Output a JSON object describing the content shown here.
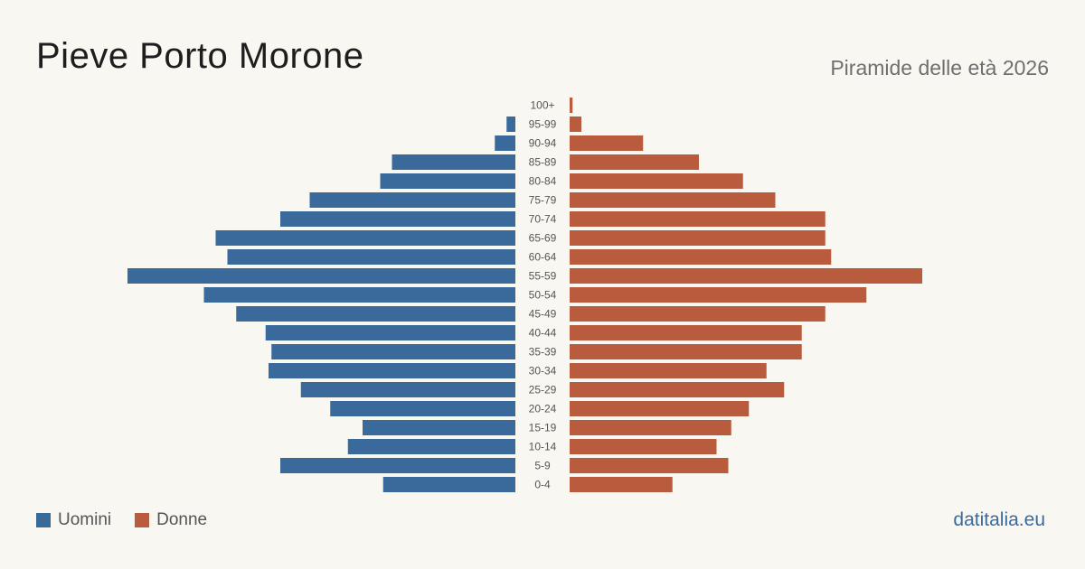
{
  "header": {
    "title": "Pieve Porto Morone",
    "subtitle": "Piramide delle età 2026"
  },
  "legend": {
    "men_label": "Uomini",
    "women_label": "Donne"
  },
  "footer": {
    "source": "datitalia.eu"
  },
  "colors": {
    "men": "#3a6a9c",
    "women": "#b95c3e",
    "background": "#f9f7f2"
  },
  "chart_data": {
    "type": "bar",
    "orientation": "horizontal-pyramid",
    "title": "Pieve Porto Morone",
    "subtitle": "Piramide delle età 2026",
    "categories": [
      "100+",
      "95-99",
      "90-94",
      "85-89",
      "80-84",
      "75-79",
      "70-74",
      "65-69",
      "60-64",
      "55-59",
      "50-54",
      "45-49",
      "40-44",
      "35-39",
      "30-34",
      "25-29",
      "20-24",
      "15-19",
      "10-14",
      "5-9",
      "0-4"
    ],
    "series": [
      {
        "name": "Uomini",
        "side": "left",
        "values": [
          0,
          3,
          7,
          42,
          46,
          70,
          80,
          102,
          98,
          132,
          106,
          95,
          85,
          83,
          84,
          73,
          63,
          52,
          57,
          80,
          45
        ]
      },
      {
        "name": "Donne",
        "side": "right",
        "values": [
          1,
          4,
          25,
          44,
          59,
          70,
          87,
          87,
          89,
          120,
          101,
          87,
          79,
          79,
          67,
          73,
          61,
          55,
          50,
          54,
          35
        ]
      }
    ],
    "legend_position": "bottom-left",
    "grid": false
  }
}
